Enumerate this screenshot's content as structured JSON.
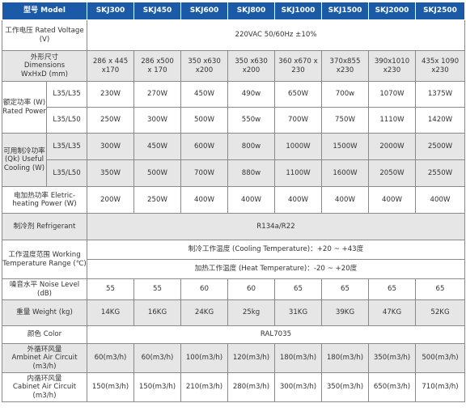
{
  "header": {
    "model_label": "型号 Model",
    "models": [
      "SKJ300",
      "SKJ450",
      "SKJ600",
      "SKJ800",
      "SKJ1000",
      "SKJ1500",
      "SKJ2000",
      "SKJ2500"
    ]
  },
  "rows": {
    "voltage": {
      "label": "工作电压 Rated Voltage (V)",
      "value": "220VAC 50/60Hz ±10%"
    },
    "dimensions": {
      "label_cn": "外形尺寸",
      "label_en1": "Dimensions",
      "label_en2": "WxHxD (mm)",
      "values": [
        [
          "286 x 445",
          "x170"
        ],
        [
          "286 x500",
          "x 170"
        ],
        [
          "350 x630",
          "x200"
        ],
        [
          "350 x630",
          "x200"
        ],
        [
          "360 x670 x",
          "230"
        ],
        [
          "370x855",
          "x230"
        ],
        [
          "390x1010",
          "x230"
        ],
        [
          "435x 1090",
          "x230"
        ]
      ]
    },
    "rated_power": {
      "label": "额定功率 (W) Rated Power",
      "sub1": "L35/L35",
      "values1": [
        "230W",
        "270W",
        "450W",
        "490w",
        "650W",
        "700w",
        "1070W",
        "1375W"
      ],
      "sub2": "L35/L50",
      "values2": [
        "250W",
        "300W",
        "500W",
        "550w",
        "700W",
        "750W",
        "1110W",
        "1420W"
      ]
    },
    "cooling": {
      "label": "可用制冷功率 (Qk) Useful Cooling (W)",
      "sub1": "L35/L35",
      "values1": [
        "300W",
        "450W",
        "600W",
        "800w",
        "1000W",
        "1500W",
        "2000W",
        "2500W"
      ],
      "sub2": "L35/L50",
      "values2": [
        "350W",
        "500W",
        "700W",
        "880w",
        "1100W",
        "1600W",
        "2050W",
        "2550W"
      ]
    },
    "heating": {
      "label": "电加热功率 Eletric-heating Power (W)",
      "values": [
        "200W",
        "250W",
        "400W",
        "400W",
        "400W",
        "400W",
        "400W",
        "400W"
      ]
    },
    "refrigerant": {
      "label": "制冷剂 Refrigerant",
      "value": "R134a/R22"
    },
    "temperature": {
      "label": "工作温度范围 Working Temperature Range (℃)",
      "cooling": "制冷工作温度 (Cooling Temperature)：+20 ~ +43度",
      "heating": "加热工作温度 (Heat Temperature)：-20 ~ +20度"
    },
    "noise": {
      "label": "噪音水平 Noise Level (dB)",
      "values": [
        "55",
        "55",
        "60",
        "60",
        "65",
        "65",
        "65",
        "65"
      ]
    },
    "weight": {
      "label": "重量 Weight (kg)",
      "values": [
        "14KG",
        "16KG",
        "24KG",
        "25kg",
        "31KG",
        "39KG",
        "47KG",
        "52KG"
      ]
    },
    "color": {
      "label": "颜色 Color",
      "value": "RAL7035"
    },
    "ambient": {
      "label_cn": "外循环风量",
      "label_en1": "Ambinet Air Circuit",
      "label_en2": "(m3/h)",
      "values": [
        "60",
        "60",
        "100",
        "120",
        "180",
        "180",
        "350",
        "500"
      ],
      "unit": "(m3/h)"
    },
    "cabinet": {
      "label_cn": "内循环风量",
      "label_en1": "Cabinet Air Circuit",
      "label_en2": "(m3/h)",
      "values": [
        "150",
        "150",
        "210",
        "280",
        "300",
        "350",
        "650",
        "710"
      ],
      "unit": "(m3/h)"
    }
  },
  "colors": {
    "header_bg": "#1a5aa6",
    "row_gray": "#e6e6e6",
    "border": "#8a8a8a"
  }
}
